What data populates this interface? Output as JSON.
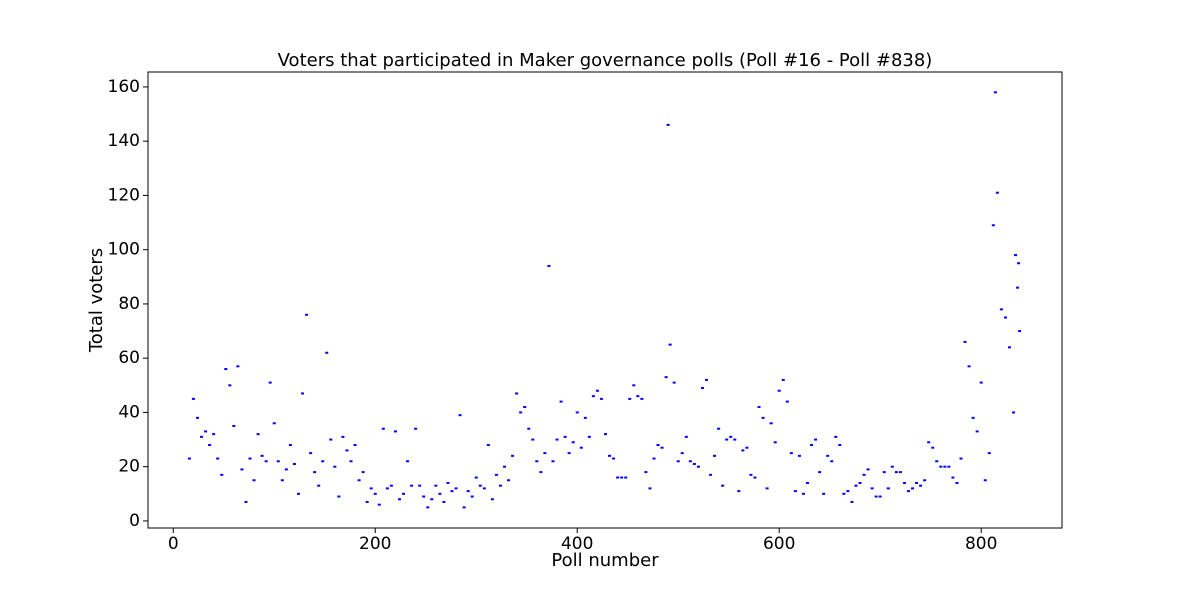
{
  "chart_data": {
    "type": "scatter",
    "title": "Voters that participated in Maker governance polls (Poll #16 - Poll #838)",
    "x_label": "Poll number",
    "y_label": "Total voters",
    "xlim": [
      -25,
      880
    ],
    "ylim": [
      -2.6,
      165.5
    ],
    "xticks": [
      0,
      200,
      400,
      600,
      800
    ],
    "yticks": [
      0,
      20,
      40,
      60,
      80,
      100,
      120,
      140,
      160
    ],
    "series": [
      {
        "color": "#0000ff",
        "x": [
          16,
          20,
          24,
          28,
          32,
          36,
          40,
          44,
          48,
          52,
          56,
          60,
          64,
          68,
          72,
          76,
          80,
          84,
          88,
          92,
          96,
          100,
          104,
          108,
          112,
          116,
          120,
          124,
          128,
          132,
          136,
          140,
          144,
          148,
          152,
          156,
          160,
          164,
          168,
          172,
          176,
          180,
          184,
          188,
          192,
          196,
          200,
          204,
          208,
          212,
          216,
          220,
          224,
          228,
          232,
          236,
          240,
          244,
          248,
          252,
          256,
          260,
          264,
          268,
          272,
          276,
          280,
          284,
          288,
          292,
          296,
          300,
          304,
          308,
          312,
          316,
          320,
          324,
          328,
          332,
          336,
          340,
          344,
          348,
          352,
          356,
          360,
          364,
          368,
          372,
          376,
          380,
          384,
          388,
          392,
          396,
          400,
          404,
          408,
          412,
          416,
          420,
          424,
          428,
          432,
          436,
          440,
          444,
          448,
          452,
          456,
          460,
          464,
          468,
          472,
          476,
          480,
          484,
          488,
          490,
          492,
          496,
          500,
          504,
          508,
          512,
          516,
          520,
          524,
          528,
          532,
          536,
          540,
          544,
          548,
          552,
          556,
          560,
          564,
          568,
          572,
          576,
          580,
          584,
          588,
          592,
          596,
          600,
          604,
          608,
          612,
          616,
          620,
          624,
          628,
          632,
          636,
          640,
          644,
          648,
          652,
          656,
          660,
          664,
          668,
          672,
          676,
          680,
          684,
          688,
          692,
          696,
          700,
          704,
          708,
          712,
          716,
          720,
          724,
          728,
          732,
          736,
          740,
          744,
          748,
          752,
          756,
          760,
          764,
          768,
          772,
          776,
          780,
          784,
          788,
          792,
          796,
          800,
          804,
          808,
          812,
          814,
          816,
          820,
          824,
          828,
          832,
          834,
          836,
          837,
          838
        ],
        "values": [
          23,
          45,
          38,
          31,
          33,
          28,
          32,
          23,
          17,
          56,
          50,
          35,
          57,
          19,
          7,
          23,
          15,
          32,
          24,
          22,
          51,
          36,
          22,
          15,
          19,
          28,
          21,
          10,
          47,
          76,
          25,
          18,
          13,
          22,
          62,
          30,
          20,
          9,
          31,
          26,
          22,
          28,
          15,
          18,
          7,
          12,
          10,
          6,
          34,
          12,
          13,
          33,
          8,
          10,
          22,
          13,
          34,
          13,
          9,
          5,
          8,
          13,
          10,
          7,
          14,
          11,
          12,
          39,
          5,
          11,
          9,
          16,
          13,
          12,
          28,
          8,
          17,
          13,
          20,
          15,
          24,
          47,
          40,
          42,
          34,
          30,
          22,
          18,
          25,
          94,
          22,
          30,
          44,
          31,
          25,
          29,
          40,
          27,
          38,
          31,
          46,
          48,
          45,
          32,
          24,
          23,
          16,
          16,
          16,
          45,
          50,
          46,
          45,
          18,
          12,
          23,
          28,
          27,
          53,
          146,
          65,
          51,
          22,
          25,
          31,
          22,
          21,
          20,
          49,
          52,
          17,
          24,
          34,
          13,
          30,
          31,
          30,
          11,
          26,
          27,
          17,
          16,
          42,
          38,
          12,
          36,
          29,
          48,
          52,
          44,
          25,
          11,
          24,
          10,
          14,
          28,
          30,
          18,
          10,
          24,
          22,
          31,
          28,
          10,
          11,
          7,
          13,
          14,
          17,
          19,
          12,
          9,
          9,
          18,
          12,
          20,
          18,
          18,
          14,
          11,
          12,
          14,
          13,
          15,
          29,
          27,
          22,
          20,
          20,
          20,
          16,
          14,
          23,
          66,
          57,
          38,
          33,
          51,
          15,
          25,
          109,
          158,
          121,
          78,
          75,
          64,
          40,
          98,
          86,
          95,
          70
        ]
      }
    ]
  }
}
